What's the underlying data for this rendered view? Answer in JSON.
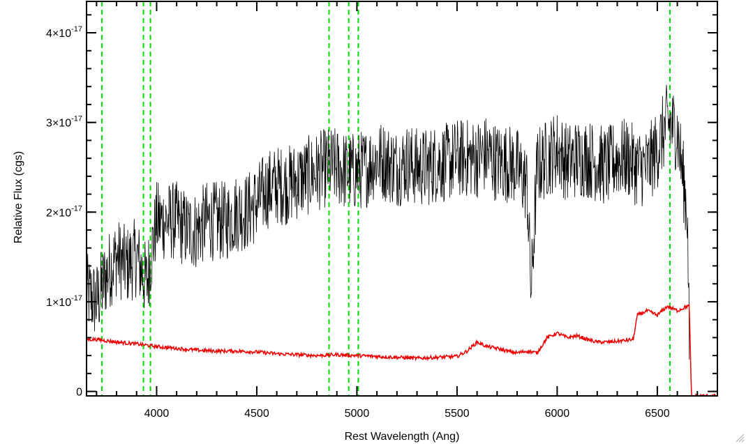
{
  "chart_data": {
    "type": "line",
    "title": "",
    "xlabel": "Rest Wavelength (Ang)",
    "ylabel": "Relative Flux (cgs)",
    "xlim": [
      3650,
      6800
    ],
    "ylim": [
      -5e-19,
      4.35e-17
    ],
    "x_ticks": [
      {
        "value": 4000,
        "label": "4000"
      },
      {
        "value": 4500,
        "label": "4500"
      },
      {
        "value": 5000,
        "label": "5000"
      },
      {
        "value": 5500,
        "label": "5500"
      },
      {
        "value": 6000,
        "label": "6000"
      },
      {
        "value": 6500,
        "label": "6500"
      }
    ],
    "y_ticks": [
      {
        "value": 0,
        "label": "0"
      },
      {
        "value": 1e-17,
        "label": "1×10",
        "exp": "-17"
      },
      {
        "value": 2e-17,
        "label": "2×10",
        "exp": "-17"
      },
      {
        "value": 3e-17,
        "label": "3×10",
        "exp": "-17"
      },
      {
        "value": 4e-17,
        "label": "4×10",
        "exp": "-17"
      }
    ],
    "grid": false,
    "legend": "none",
    "reference_lines": {
      "color": "#00dd00",
      "style": "dashed",
      "x": [
        3727,
        3934,
        3969,
        4861,
        4959,
        5007,
        6563
      ]
    },
    "series": [
      {
        "color": "#000000",
        "x": [
          3650,
          3700,
          3750,
          3800,
          3850,
          3900,
          3950,
          4000,
          4050,
          4100,
          4150,
          4200,
          4250,
          4300,
          4350,
          4400,
          4450,
          4500,
          4550,
          4600,
          4650,
          4700,
          4750,
          4800,
          4850,
          4900,
          4950,
          5000,
          5050,
          5100,
          5150,
          5200,
          5250,
          5300,
          5350,
          5400,
          5450,
          5500,
          5550,
          5600,
          5650,
          5700,
          5750,
          5800,
          5850,
          5870,
          5900,
          5950,
          6000,
          6050,
          6100,
          6150,
          6200,
          6250,
          6300,
          6350,
          6400,
          6450,
          6500,
          6550,
          6600,
          6650,
          6660
        ],
        "y": [
          1.1e-17,
          1e-17,
          1.3e-17,
          1.5e-17,
          1.4e-17,
          1.5e-17,
          1.2e-17,
          1.9e-17,
          1.9e-17,
          1.9e-17,
          1.8e-17,
          1.8e-17,
          1.9e-17,
          1.9e-17,
          1.9e-17,
          2e-17,
          2e-17,
          2.1e-17,
          2.25e-17,
          2.3e-17,
          2.3e-17,
          2.35e-17,
          2.4e-17,
          2.45e-17,
          2.5e-17,
          2.5e-17,
          2.45e-17,
          2.45e-17,
          2.5e-17,
          2.6e-17,
          2.55e-17,
          2.5e-17,
          2.55e-17,
          2.5e-17,
          2.5e-17,
          2.55e-17,
          2.55e-17,
          2.6e-17,
          2.6e-17,
          2.6e-17,
          2.65e-17,
          2.55e-17,
          2.55e-17,
          2.5e-17,
          2.3e-17,
          1.1e-17,
          2.5e-17,
          2.6e-17,
          2.7e-17,
          2.55e-17,
          2.6e-17,
          2.6e-17,
          2.55e-17,
          2.5e-17,
          2.6e-17,
          2.6e-17,
          2.5e-17,
          2.5e-17,
          2.7e-17,
          3e-17,
          2.9e-17,
          2e-17,
          5e-18
        ]
      },
      {
        "color": "#ee0000",
        "x": [
          3650,
          3700,
          3800,
          3900,
          4000,
          4100,
          4200,
          4300,
          4400,
          4500,
          4600,
          4700,
          4800,
          4900,
          5000,
          5100,
          5200,
          5300,
          5400,
          5500,
          5550,
          5600,
          5650,
          5700,
          5750,
          5800,
          5850,
          5900,
          5950,
          6000,
          6050,
          6100,
          6150,
          6200,
          6250,
          6300,
          6350,
          6380,
          6400,
          6450,
          6500,
          6550,
          6600,
          6650,
          6660,
          6670,
          6800
        ],
        "y": [
          5.8e-18,
          5.8e-18,
          5.5e-18,
          5.3e-18,
          5e-18,
          4.8e-18,
          4.6e-18,
          4.5e-18,
          4.5e-18,
          4.4e-18,
          4.2e-18,
          4.1e-18,
          4e-18,
          4.1e-18,
          4e-18,
          3.9e-18,
          3.8e-18,
          3.7e-18,
          3.8e-18,
          3.9e-18,
          4.5e-18,
          5.5e-18,
          5e-18,
          4.8e-18,
          4.5e-18,
          4.3e-18,
          4.5e-18,
          4.3e-18,
          6e-18,
          6.5e-18,
          6e-18,
          6.2e-18,
          5.8e-18,
          5.5e-18,
          5.5e-18,
          5.6e-18,
          5.7e-18,
          5.8e-18,
          8.5e-18,
          9e-18,
          8.5e-18,
          9.5e-18,
          9e-18,
          9.5e-18,
          9.5e-18,
          -5e-19,
          -5e-19
        ]
      }
    ]
  }
}
